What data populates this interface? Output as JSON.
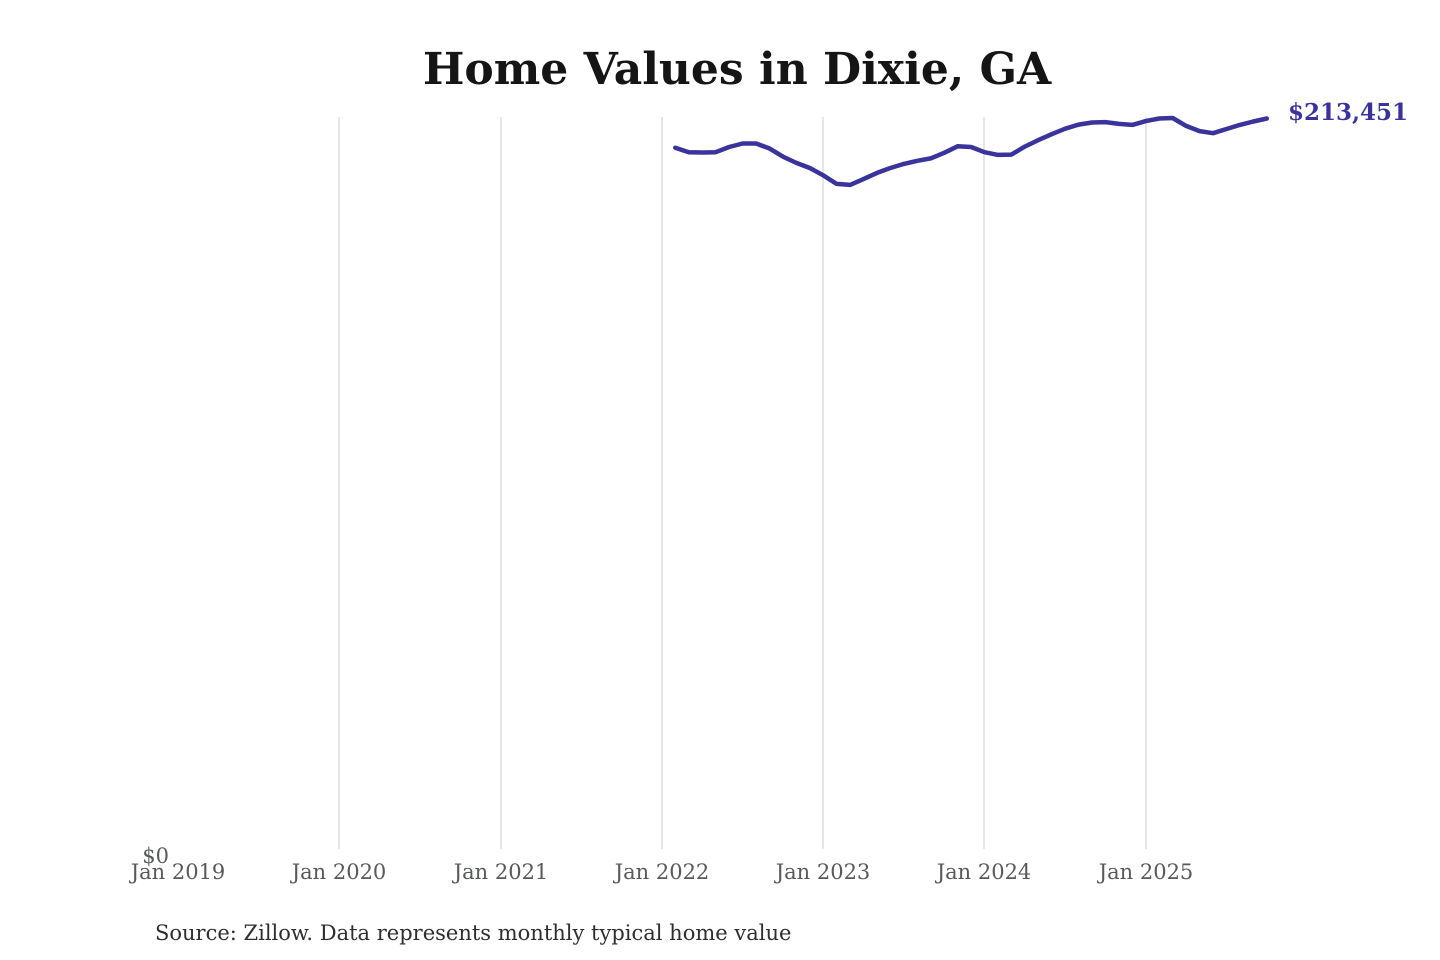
{
  "footer": {
    "source_note": "Source: Zillow. Data represents monthly typical home value"
  },
  "colors": {
    "line": "#39339b",
    "grid": "#cccccc",
    "axis": "#58595b",
    "title": "#151515",
    "source": "#2e2e2e",
    "annotation": "#39339b"
  },
  "chart_data": {
    "type": "line",
    "title": "Home Values in Dixie, GA",
    "end_label": "$213,451",
    "grid": "vertical-only",
    "legend": "none",
    "ylim": [
      0,
      215000
    ],
    "y_tick_labels": [
      "$0"
    ],
    "x_ticks": [
      "Jan 2019",
      "Jan 2020",
      "Jan 2021",
      "Jan 2022",
      "Jan 2023",
      "Jan 2024",
      "Jan 2025"
    ],
    "x": [
      "Feb 2022",
      "Mar 2022",
      "Apr 2022",
      "May 2022",
      "Jun 2022",
      "Jul 2022",
      "Aug 2022",
      "Sep 2022",
      "Oct 2022",
      "Nov 2022",
      "Dec 2022",
      "Jan 2023",
      "Feb 2023",
      "Mar 2023",
      "Apr 2023",
      "May 2023",
      "Jun 2023",
      "Jul 2023",
      "Aug 2023",
      "Sep 2023",
      "Oct 2023",
      "Nov 2023",
      "Dec 2023",
      "Jan 2024",
      "Feb 2024",
      "Mar 2024",
      "Apr 2024",
      "May 2024",
      "Jun 2024",
      "Jul 2024",
      "Aug 2024",
      "Sep 2024",
      "Oct 2024",
      "Nov 2024",
      "Dec 2024",
      "Jan 2025",
      "Feb 2025",
      "Mar 2025",
      "Apr 2025",
      "May 2025",
      "Jun 2025",
      "Jul 2025",
      "Aug 2025",
      "Sep 2025",
      "Oct 2025"
    ],
    "values": [
      205000,
      203700,
      203600,
      203700,
      205200,
      206200,
      206200,
      204800,
      202400,
      200600,
      199100,
      197000,
      194500,
      194200,
      195900,
      197700,
      199100,
      200300,
      201200,
      201900,
      203500,
      205400,
      205200,
      203700,
      202900,
      203000,
      205300,
      207200,
      208900,
      210500,
      211700,
      212300,
      212400,
      211900,
      211600,
      212700,
      213450,
      213600,
      211300,
      209800,
      209200,
      210400,
      211600,
      212600,
      213451
    ]
  }
}
